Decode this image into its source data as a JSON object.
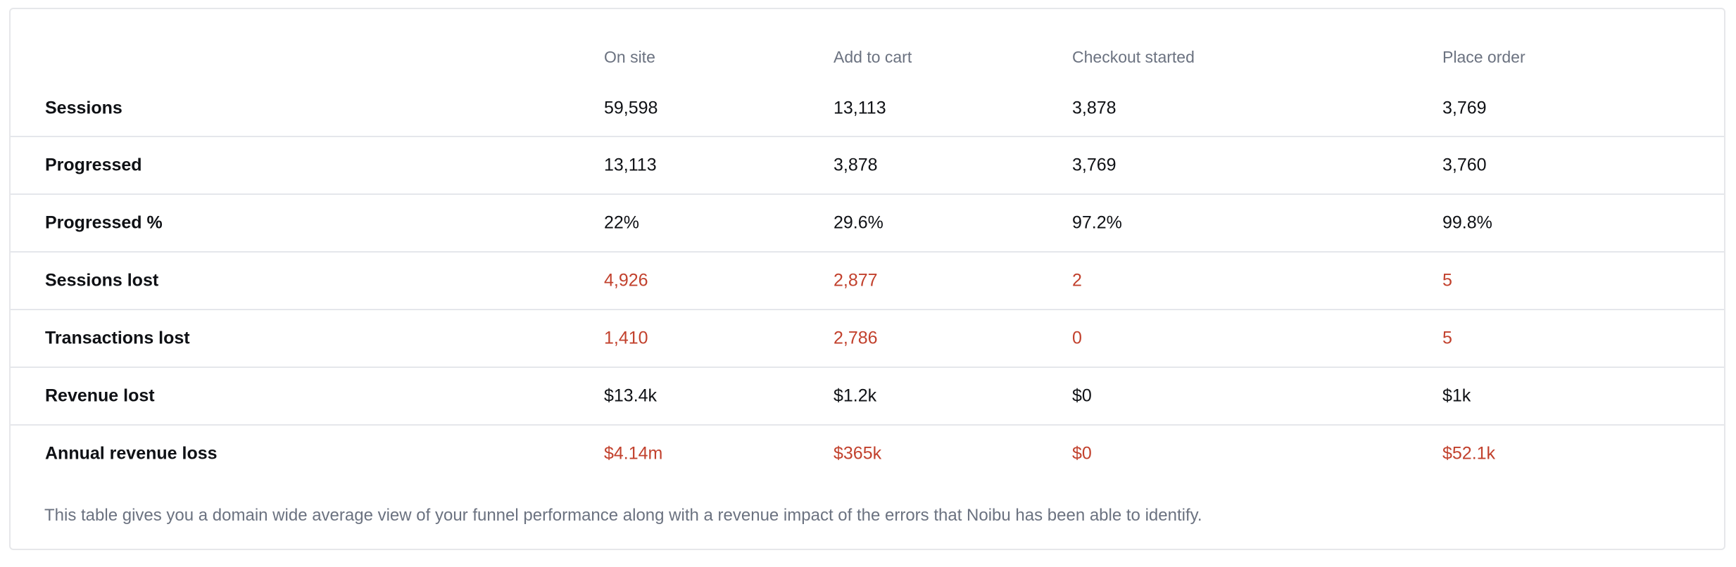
{
  "table": {
    "columns": [
      "On site",
      "Add to cart",
      "Checkout started",
      "Place order"
    ],
    "rows": [
      {
        "label": "Sessions",
        "values": [
          "59,598",
          "13,113",
          "3,878",
          "3,769"
        ],
        "highlight": false
      },
      {
        "label": "Progressed",
        "values": [
          "13,113",
          "3,878",
          "3,769",
          "3,760"
        ],
        "highlight": false
      },
      {
        "label": "Progressed %",
        "values": [
          "22%",
          "29.6%",
          "97.2%",
          "99.8%"
        ],
        "highlight": false
      },
      {
        "label": "Sessions lost",
        "values": [
          "4,926",
          "2,877",
          "2",
          "5"
        ],
        "highlight": true
      },
      {
        "label": "Transactions lost",
        "values": [
          "1,410",
          "2,786",
          "0",
          "5"
        ],
        "highlight": true
      },
      {
        "label": "Revenue lost",
        "values": [
          "$13.4k",
          "$1.2k",
          "$0",
          "$1k"
        ],
        "highlight": false
      },
      {
        "label": "Annual revenue loss",
        "values": [
          "$4.14m",
          "$365k",
          "$0",
          "$52.1k"
        ],
        "highlight": true
      }
    ]
  },
  "footnote": "This table gives you a domain wide average view of your funnel performance along with a revenue impact of the errors that Noibu has been able to identify.",
  "colors": {
    "loss_text": "#c2412d",
    "header_text": "#6b7280",
    "row_divider": "#e5e7eb"
  }
}
